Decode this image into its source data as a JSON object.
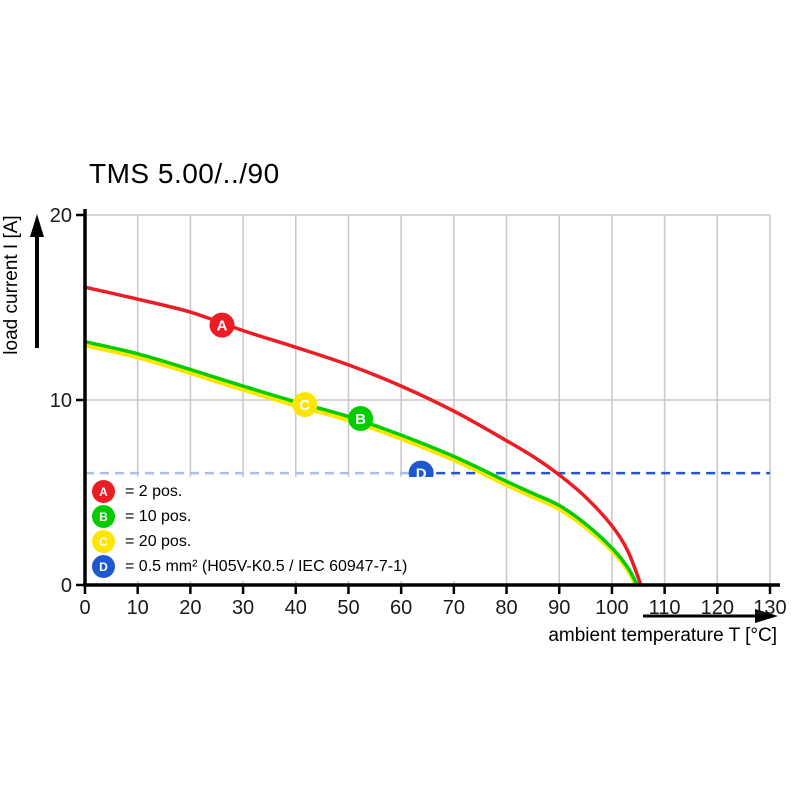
{
  "chart_data": {
    "type": "line",
    "title": "TMS 5.00/../90",
    "xlabel": "ambient temperature T [°C]",
    "ylabel": "load current I [A]",
    "xlim": [
      0,
      130
    ],
    "ylim": [
      0,
      20
    ],
    "x_ticks": [
      0,
      10,
      20,
      30,
      40,
      50,
      60,
      70,
      80,
      90,
      100,
      110,
      120,
      130
    ],
    "y_ticks": [
      0,
      10,
      20
    ],
    "grid": true,
    "grid_color": "#cacaca",
    "axis_color": "#000000",
    "series": [
      {
        "name": "C = 20 pos.",
        "color": "#ffe600",
        "width": 4,
        "points": [
          [
            0,
            12.95
          ],
          [
            10,
            12.3
          ],
          [
            20,
            11.45
          ],
          [
            30,
            10.55
          ],
          [
            40,
            9.7
          ],
          [
            50,
            8.9
          ],
          [
            60,
            7.9
          ],
          [
            70,
            6.75
          ],
          [
            80,
            5.4
          ],
          [
            85,
            4.75
          ],
          [
            90,
            4.1
          ],
          [
            95,
            3.1
          ],
          [
            100,
            1.85
          ],
          [
            103,
            0.8
          ],
          [
            104.5,
            0
          ]
        ]
      },
      {
        "name": "B = 10 pos.",
        "color": "#00cd00",
        "width": 3.5,
        "points": [
          [
            0,
            13.15
          ],
          [
            10,
            12.5
          ],
          [
            20,
            11.65
          ],
          [
            30,
            10.75
          ],
          [
            40,
            9.9
          ],
          [
            50,
            9.1
          ],
          [
            60,
            8.1
          ],
          [
            70,
            6.95
          ],
          [
            80,
            5.6
          ],
          [
            85,
            4.95
          ],
          [
            90,
            4.3
          ],
          [
            95,
            3.3
          ],
          [
            100,
            2.0
          ],
          [
            103,
            0.95
          ],
          [
            104.8,
            0
          ]
        ]
      },
      {
        "name": "A = 2 pos.",
        "color": "#ec1c24",
        "width": 3.5,
        "points": [
          [
            0,
            16.1
          ],
          [
            10,
            15.45
          ],
          [
            20,
            14.75
          ],
          [
            30,
            13.75
          ],
          [
            40,
            12.85
          ],
          [
            50,
            11.9
          ],
          [
            60,
            10.75
          ],
          [
            70,
            9.4
          ],
          [
            80,
            7.8
          ],
          [
            85,
            6.95
          ],
          [
            90,
            5.95
          ],
          [
            95,
            4.75
          ],
          [
            100,
            3.2
          ],
          [
            103,
            1.85
          ],
          [
            105.5,
            0
          ]
        ]
      }
    ],
    "markers": [
      {
        "letter": "A",
        "color": "#ec1c24",
        "T": 26,
        "I": 14.05
      },
      {
        "letter": "C",
        "color": "#ffe600",
        "T": 41.7,
        "I": 9.75
      },
      {
        "letter": "B",
        "color": "#00cd00",
        "T": 52.3,
        "I": 9.0
      },
      {
        "letter": "D",
        "color": "#1b58d2",
        "T": 63.8,
        "I": 6.05
      }
    ],
    "limit_line": {
      "I": 6.05,
      "split_T": 63.8,
      "light_color": "#a9c0e8",
      "dark_color": "#2456cd"
    },
    "legend": [
      {
        "letter": "A",
        "color": "#ec1c24",
        "label": "= 2 pos."
      },
      {
        "letter": "B",
        "color": "#00cd00",
        "label": "= 10 pos."
      },
      {
        "letter": "C",
        "color": "#ffe600",
        "label": "= 20 pos."
      },
      {
        "letter": "D",
        "color": "#1b58d2",
        "label": "= 0.5 mm² (H05V-K0.5 / IEC 60947-7-1)"
      }
    ]
  }
}
